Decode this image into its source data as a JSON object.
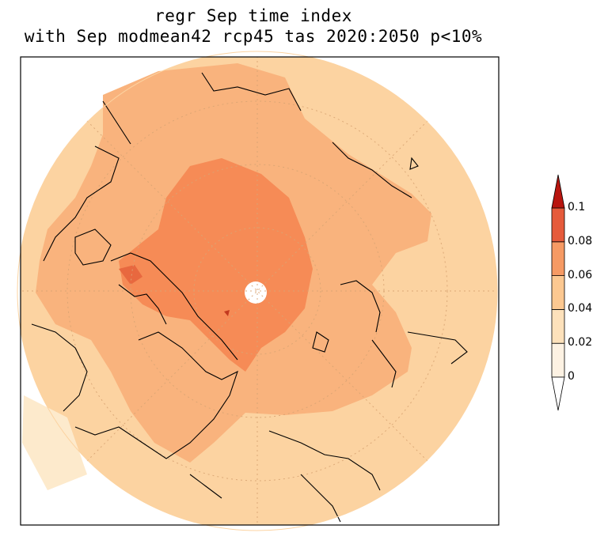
{
  "title_line1": "regr Sep time index",
  "title_line2": "with Sep modmean42 rcp45 tas 2020:2050 p<10%",
  "colorbar": {
    "ticks": [
      "0",
      "0.02",
      "0.04",
      "0.06",
      "0.08",
      "0.1"
    ],
    "colors": [
      "#fdf2e3",
      "#fde1bb",
      "#fcc891",
      "#f69a64",
      "#e55a3b",
      "#b8150f"
    ]
  },
  "map": {
    "projection": "north-polar-stereographic",
    "variable": "tas"
  }
}
